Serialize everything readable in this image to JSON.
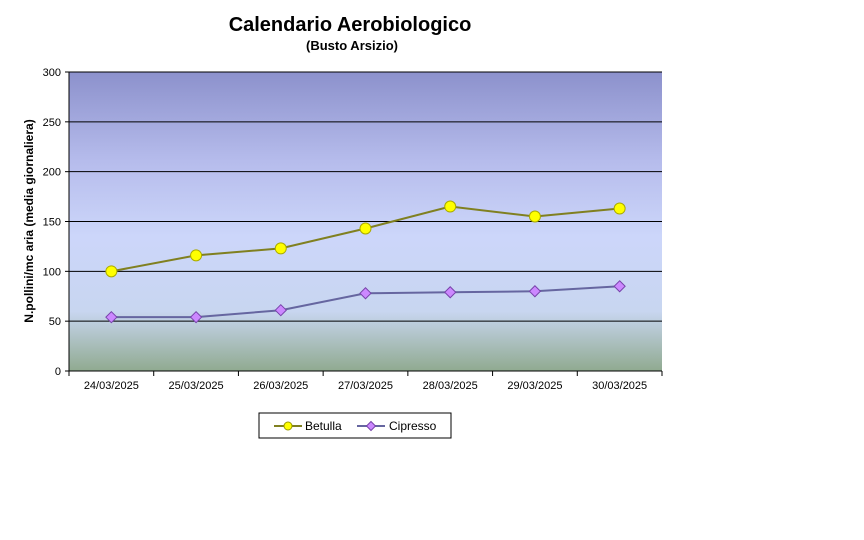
{
  "chart_data": {
    "type": "line",
    "title": "Calendario Aerobiologico",
    "subtitle": "(Busto Arsizio)",
    "ylabel": "N.pollini/mc aria (media giornaliera)",
    "xlabel": "",
    "ylim": [
      0,
      300
    ],
    "yticks": [
      0,
      50,
      100,
      150,
      200,
      250,
      300
    ],
    "categories": [
      "24/03/2025",
      "25/03/2025",
      "26/03/2025",
      "27/03/2025",
      "28/03/2025",
      "29/03/2025",
      "30/03/2025"
    ],
    "grid": "horizontal",
    "legend_position": "bottom",
    "series": [
      {
        "name": "Betulla",
        "values": [
          100,
          116,
          123,
          143,
          165,
          155,
          163
        ],
        "color": "#808020",
        "marker": "circle",
        "marker_color": "#ffff00"
      },
      {
        "name": "Cipresso",
        "values": [
          54,
          54,
          61,
          78,
          79,
          80,
          85
        ],
        "color": "#6666a0",
        "marker": "diamond",
        "marker_color": "#cc88ff"
      }
    ]
  }
}
